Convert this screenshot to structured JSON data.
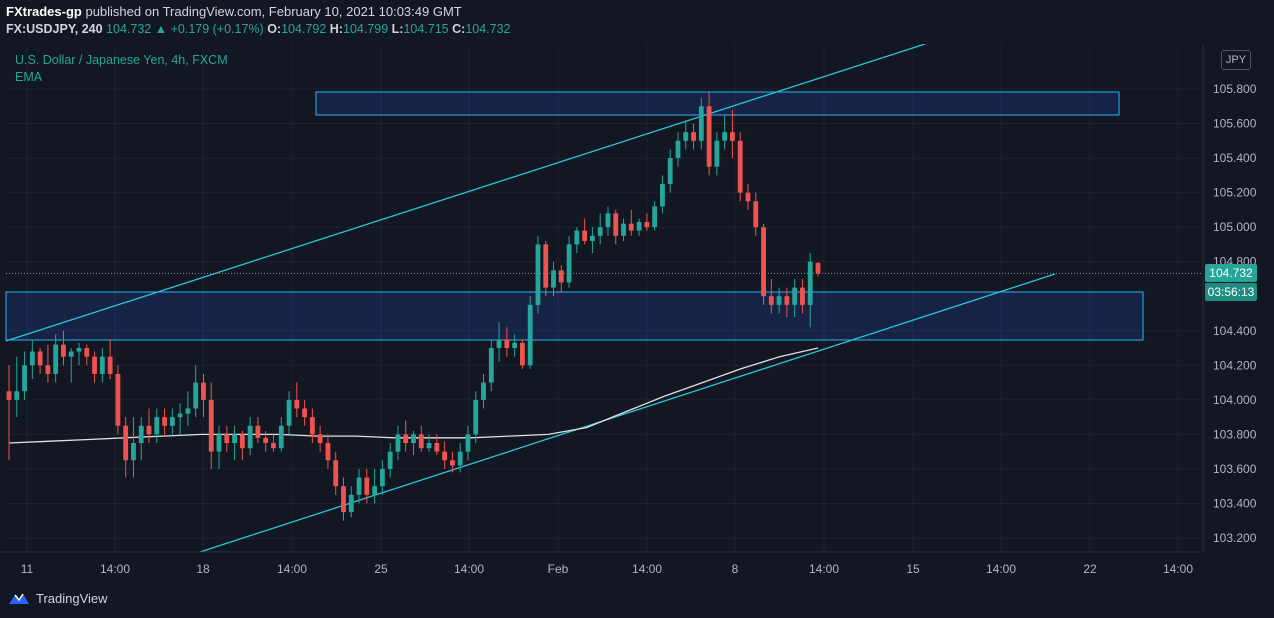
{
  "header": {
    "publisher": "FXtrades-gp",
    "published_text": "published on TradingView.com, February 10, 2021 10:03:49 GMT",
    "symbol": "FX:USDJPY, 240",
    "last": "104.732",
    "change": "+0.179 (+0.17%)",
    "open_label": "O:",
    "open": "104.792",
    "high_label": "H:",
    "high": "104.799",
    "low_label": "L:",
    "low": "104.715",
    "close_label": "C:",
    "close": "104.732"
  },
  "legend": {
    "title": "U.S. Dollar / Japanese Yen, 4h, FXCM",
    "indicator": "EMA"
  },
  "price_scale": {
    "currency": "JPY",
    "current_price": "104.732",
    "countdown": "03:56:13"
  },
  "footer": {
    "brand": "TradingView"
  },
  "colors": {
    "background": "#131722",
    "up": "#26a69a",
    "down": "#ef5350",
    "trendline": "#26c6da",
    "ema": "#e0e0e0",
    "zone_border": "#29b6f6",
    "zone_fill": "rgba(41,98,255,0.16)",
    "grid": "#1e2230"
  },
  "chart_data": {
    "type": "candlestick",
    "symbol": "FX:USDJPY",
    "timeframe": "4h",
    "y_ticks": [
      "105.800",
      "105.600",
      "105.400",
      "105.200",
      "105.000",
      "104.800",
      "104.400",
      "104.200",
      "104.000",
      "103.800",
      "103.600",
      "103.400",
      "103.200"
    ],
    "ylim": [
      103.13,
      106.05
    ],
    "x_ticks": [
      "11",
      "14:00",
      "18",
      "14:00",
      "25",
      "14:00",
      "Feb",
      "14:00",
      "8",
      "14:00",
      "15",
      "14:00",
      "22",
      "14:00"
    ],
    "candles": [
      {
        "o": 104.05,
        "h": 104.2,
        "l": 103.65,
        "c": 104.0
      },
      {
        "o": 104.0,
        "h": 104.25,
        "l": 103.9,
        "c": 104.05
      },
      {
        "o": 104.05,
        "h": 104.28,
        "l": 104.0,
        "c": 104.2
      },
      {
        "o": 104.2,
        "h": 104.35,
        "l": 104.12,
        "c": 104.28
      },
      {
        "o": 104.28,
        "h": 104.3,
        "l": 104.15,
        "c": 104.2
      },
      {
        "o": 104.2,
        "h": 104.32,
        "l": 104.1,
        "c": 104.15
      },
      {
        "o": 104.15,
        "h": 104.38,
        "l": 104.1,
        "c": 104.32
      },
      {
        "o": 104.32,
        "h": 104.4,
        "l": 104.2,
        "c": 104.25
      },
      {
        "o": 104.25,
        "h": 104.3,
        "l": 104.1,
        "c": 104.28
      },
      {
        "o": 104.28,
        "h": 104.33,
        "l": 104.2,
        "c": 104.3
      },
      {
        "o": 104.3,
        "h": 104.32,
        "l": 104.2,
        "c": 104.25
      },
      {
        "o": 104.25,
        "h": 104.28,
        "l": 104.1,
        "c": 104.15
      },
      {
        "o": 104.15,
        "h": 104.3,
        "l": 104.1,
        "c": 104.25
      },
      {
        "o": 104.25,
        "h": 104.35,
        "l": 104.12,
        "c": 104.15
      },
      {
        "o": 104.15,
        "h": 104.2,
        "l": 103.8,
        "c": 103.85
      },
      {
        "o": 103.85,
        "h": 103.9,
        "l": 103.55,
        "c": 103.65
      },
      {
        "o": 103.65,
        "h": 103.9,
        "l": 103.55,
        "c": 103.75
      },
      {
        "o": 103.75,
        "h": 103.9,
        "l": 103.65,
        "c": 103.85
      },
      {
        "o": 103.85,
        "h": 103.95,
        "l": 103.75,
        "c": 103.8
      },
      {
        "o": 103.8,
        "h": 103.95,
        "l": 103.75,
        "c": 103.9
      },
      {
        "o": 103.9,
        "h": 103.95,
        "l": 103.8,
        "c": 103.85
      },
      {
        "o": 103.85,
        "h": 103.95,
        "l": 103.8,
        "c": 103.9
      },
      {
        "o": 103.9,
        "h": 103.98,
        "l": 103.8,
        "c": 103.92
      },
      {
        "o": 103.92,
        "h": 104.05,
        "l": 103.85,
        "c": 103.95
      },
      {
        "o": 103.95,
        "h": 104.2,
        "l": 103.9,
        "c": 104.1
      },
      {
        "o": 104.1,
        "h": 104.15,
        "l": 103.9,
        "c": 104.0
      },
      {
        "o": 104.0,
        "h": 104.1,
        "l": 103.6,
        "c": 103.7
      },
      {
        "o": 103.7,
        "h": 103.85,
        "l": 103.6,
        "c": 103.8
      },
      {
        "o": 103.8,
        "h": 103.85,
        "l": 103.7,
        "c": 103.75
      },
      {
        "o": 103.75,
        "h": 103.85,
        "l": 103.65,
        "c": 103.8
      },
      {
        "o": 103.8,
        "h": 103.82,
        "l": 103.65,
        "c": 103.72
      },
      {
        "o": 103.72,
        "h": 103.9,
        "l": 103.68,
        "c": 103.85
      },
      {
        "o": 103.85,
        "h": 103.9,
        "l": 103.75,
        "c": 103.78
      },
      {
        "o": 103.78,
        "h": 103.82,
        "l": 103.7,
        "c": 103.75
      },
      {
        "o": 103.75,
        "h": 103.8,
        "l": 103.7,
        "c": 103.72
      },
      {
        "o": 103.72,
        "h": 103.9,
        "l": 103.7,
        "c": 103.85
      },
      {
        "o": 103.85,
        "h": 104.05,
        "l": 103.8,
        "c": 104.0
      },
      {
        "o": 104.0,
        "h": 104.1,
        "l": 103.9,
        "c": 103.95
      },
      {
        "o": 103.95,
        "h": 104.0,
        "l": 103.85,
        "c": 103.9
      },
      {
        "o": 103.9,
        "h": 103.95,
        "l": 103.75,
        "c": 103.8
      },
      {
        "o": 103.8,
        "h": 103.85,
        "l": 103.7,
        "c": 103.75
      },
      {
        "o": 103.75,
        "h": 103.8,
        "l": 103.6,
        "c": 103.65
      },
      {
        "o": 103.65,
        "h": 103.7,
        "l": 103.45,
        "c": 103.5
      },
      {
        "o": 103.5,
        "h": 103.55,
        "l": 103.3,
        "c": 103.35
      },
      {
        "o": 103.35,
        "h": 103.5,
        "l": 103.32,
        "c": 103.45
      },
      {
        "o": 103.45,
        "h": 103.6,
        "l": 103.4,
        "c": 103.55
      },
      {
        "o": 103.55,
        "h": 103.6,
        "l": 103.4,
        "c": 103.45
      },
      {
        "o": 103.45,
        "h": 103.6,
        "l": 103.4,
        "c": 103.5
      },
      {
        "o": 103.5,
        "h": 103.65,
        "l": 103.45,
        "c": 103.6
      },
      {
        "o": 103.6,
        "h": 103.75,
        "l": 103.55,
        "c": 103.7
      },
      {
        "o": 103.7,
        "h": 103.85,
        "l": 103.65,
        "c": 103.8
      },
      {
        "o": 103.8,
        "h": 103.88,
        "l": 103.7,
        "c": 103.75
      },
      {
        "o": 103.75,
        "h": 103.82,
        "l": 103.68,
        "c": 103.8
      },
      {
        "o": 103.8,
        "h": 103.85,
        "l": 103.7,
        "c": 103.72
      },
      {
        "o": 103.72,
        "h": 103.8,
        "l": 103.7,
        "c": 103.75
      },
      {
        "o": 103.75,
        "h": 103.8,
        "l": 103.68,
        "c": 103.7
      },
      {
        "o": 103.7,
        "h": 103.76,
        "l": 103.6,
        "c": 103.65
      },
      {
        "o": 103.65,
        "h": 103.7,
        "l": 103.58,
        "c": 103.62
      },
      {
        "o": 103.62,
        "h": 103.75,
        "l": 103.58,
        "c": 103.7
      },
      {
        "o": 103.7,
        "h": 103.85,
        "l": 103.65,
        "c": 103.8
      },
      {
        "o": 103.8,
        "h": 104.05,
        "l": 103.75,
        "c": 104.0
      },
      {
        "o": 104.0,
        "h": 104.15,
        "l": 103.95,
        "c": 104.1
      },
      {
        "o": 104.1,
        "h": 104.35,
        "l": 104.05,
        "c": 104.3
      },
      {
        "o": 104.3,
        "h": 104.45,
        "l": 104.22,
        "c": 104.35
      },
      {
        "o": 104.35,
        "h": 104.42,
        "l": 104.25,
        "c": 104.3
      },
      {
        "o": 104.3,
        "h": 104.38,
        "l": 104.25,
        "c": 104.33
      },
      {
        "o": 104.33,
        "h": 104.35,
        "l": 104.18,
        "c": 104.2
      },
      {
        "o": 104.2,
        "h": 104.6,
        "l": 104.18,
        "c": 104.55
      },
      {
        "o": 104.55,
        "h": 104.95,
        "l": 104.5,
        "c": 104.9
      },
      {
        "o": 104.9,
        "h": 104.92,
        "l": 104.6,
        "c": 104.65
      },
      {
        "o": 104.65,
        "h": 104.8,
        "l": 104.6,
        "c": 104.75
      },
      {
        "o": 104.75,
        "h": 104.78,
        "l": 104.62,
        "c": 104.68
      },
      {
        "o": 104.68,
        "h": 104.95,
        "l": 104.65,
        "c": 104.9
      },
      {
        "o": 104.9,
        "h": 105.0,
        "l": 104.85,
        "c": 104.98
      },
      {
        "o": 104.98,
        "h": 105.05,
        "l": 104.9,
        "c": 104.92
      },
      {
        "o": 104.92,
        "h": 105.0,
        "l": 104.85,
        "c": 104.95
      },
      {
        "o": 104.95,
        "h": 105.08,
        "l": 104.9,
        "c": 105.0
      },
      {
        "o": 105.0,
        "h": 105.12,
        "l": 104.95,
        "c": 105.08
      },
      {
        "o": 105.08,
        "h": 105.1,
        "l": 104.9,
        "c": 104.95
      },
      {
        "o": 104.95,
        "h": 105.05,
        "l": 104.92,
        "c": 105.02
      },
      {
        "o": 105.02,
        "h": 105.1,
        "l": 104.95,
        "c": 104.98
      },
      {
        "o": 104.98,
        "h": 105.05,
        "l": 104.95,
        "c": 105.03
      },
      {
        "o": 105.03,
        "h": 105.08,
        "l": 104.98,
        "c": 105.0
      },
      {
        "o": 105.0,
        "h": 105.15,
        "l": 104.98,
        "c": 105.12
      },
      {
        "o": 105.12,
        "h": 105.3,
        "l": 105.08,
        "c": 105.25
      },
      {
        "o": 105.25,
        "h": 105.45,
        "l": 105.2,
        "c": 105.4
      },
      {
        "o": 105.4,
        "h": 105.55,
        "l": 105.35,
        "c": 105.5
      },
      {
        "o": 105.5,
        "h": 105.62,
        "l": 105.45,
        "c": 105.55
      },
      {
        "o": 105.55,
        "h": 105.6,
        "l": 105.45,
        "c": 105.5
      },
      {
        "o": 105.5,
        "h": 105.75,
        "l": 105.45,
        "c": 105.7
      },
      {
        "o": 105.7,
        "h": 105.78,
        "l": 105.3,
        "c": 105.35
      },
      {
        "o": 105.35,
        "h": 105.55,
        "l": 105.3,
        "c": 105.5
      },
      {
        "o": 105.5,
        "h": 105.65,
        "l": 105.45,
        "c": 105.55
      },
      {
        "o": 105.55,
        "h": 105.68,
        "l": 105.4,
        "c": 105.5
      },
      {
        "o": 105.5,
        "h": 105.55,
        "l": 105.15,
        "c": 105.2
      },
      {
        "o": 105.2,
        "h": 105.25,
        "l": 105.1,
        "c": 105.15
      },
      {
        "o": 105.15,
        "h": 105.2,
        "l": 104.95,
        "c": 105.0
      },
      {
        "o": 105.0,
        "h": 105.02,
        "l": 104.55,
        "c": 104.6
      },
      {
        "o": 104.6,
        "h": 104.7,
        "l": 104.5,
        "c": 104.55
      },
      {
        "o": 104.55,
        "h": 104.65,
        "l": 104.5,
        "c": 104.6
      },
      {
        "o": 104.6,
        "h": 104.65,
        "l": 104.48,
        "c": 104.55
      },
      {
        "o": 104.55,
        "h": 104.7,
        "l": 104.48,
        "c": 104.65
      },
      {
        "o": 104.65,
        "h": 104.7,
        "l": 104.5,
        "c": 104.55
      },
      {
        "o": 104.55,
        "h": 104.85,
        "l": 104.42,
        "c": 104.8
      },
      {
        "o": 104.792,
        "h": 104.799,
        "l": 104.715,
        "c": 104.732
      }
    ],
    "ema": [
      103.75,
      103.76,
      103.77,
      103.78,
      103.79,
      103.8,
      103.8,
      103.8,
      103.79,
      103.79,
      103.78,
      103.78,
      103.78,
      103.79,
      103.8,
      103.84,
      103.93,
      104.02,
      104.1,
      104.18,
      104.25,
      104.3
    ]
  }
}
